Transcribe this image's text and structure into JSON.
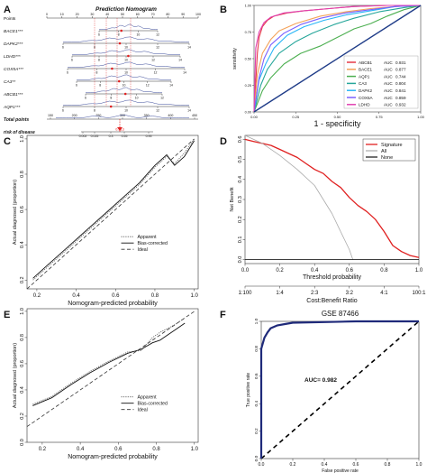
{
  "panels": {
    "A": {
      "letter": "A",
      "title": "Prediction Nomogram",
      "rows": [
        "Points",
        "BACE1***",
        "DAPK2***",
        "LDHD***",
        "COX5A***",
        "CA3**",
        "ABCB1***",
        "AQP1***"
      ],
      "points_ticks": [
        "0",
        "10",
        "20",
        "30",
        "40",
        "50",
        "60",
        "70",
        "80",
        "90",
        "100"
      ],
      "total_points_label": "Total points",
      "total_points_ticks": [
        "150",
        "200",
        "250",
        "300",
        "350",
        "400",
        "450"
      ],
      "risk_label": "risk of disease",
      "risk_ticks": [
        "0.002",
        "0.025",
        "0.3",
        "0.55",
        "0.95"
      ],
      "risk_marker": "0.913",
      "row_ticks": {
        "BACE1": [
          "6",
          "8",
          "10",
          "12"
        ],
        "DAPK2": [
          "6",
          "8",
          "10",
          "12",
          "14"
        ],
        "LDHD": [
          "6",
          "8",
          "10",
          "12",
          "14"
        ],
        "COX5A": [
          "6",
          "8",
          "10",
          "12",
          "14"
        ],
        "CA3": [
          "6",
          "8",
          "10",
          "12",
          "14"
        ],
        "ABCB1": [
          "6",
          "8",
          "10",
          "12"
        ],
        "AQP1": [
          "6",
          "8",
          "10",
          "12",
          "14"
        ]
      }
    },
    "B": {
      "letter": "B",
      "xlabel": "1 - specificity",
      "ylabel": "sensitivity",
      "xticks": [
        "0.00",
        "0.25",
        "0.50",
        "0.75",
        "1.00"
      ],
      "yticks": [
        "0.00",
        "0.25",
        "0.50",
        "0.75",
        "1.00"
      ],
      "legend": [
        {
          "gene": "ABCB1",
          "auc_label": "AUC",
          "auc": "0.931",
          "color": "#e63946"
        },
        {
          "gene": "BACE1",
          "auc_label": "AUC",
          "auc": "0.877",
          "color": "#f4a259"
        },
        {
          "gene": "AQP1",
          "auc_label": "AUC",
          "auc": "0.744",
          "color": "#4caf50"
        },
        {
          "gene": "CA3",
          "auc_label": "AUC",
          "auc": "0.804",
          "color": "#26a69a"
        },
        {
          "gene": "DAPK2",
          "auc_label": "AUC",
          "auc": "0.841",
          "color": "#29b6f6"
        },
        {
          "gene": "COX5A",
          "auc_label": "AUC",
          "auc": "0.859",
          "color": "#7b61ff"
        },
        {
          "gene": "LDHD",
          "auc_label": "AUC",
          "auc": "0.932",
          "color": "#e040b0"
        }
      ]
    },
    "C": {
      "letter": "C",
      "xlabel": "Nomogram-predicted probability",
      "ylabel": "Actual diagnosed (proportion)",
      "xticks": [
        "0.2",
        "0.4",
        "0.6",
        "0.8",
        "1.0"
      ],
      "yticks": [
        "0.2",
        "0.4",
        "0.6",
        "0.8",
        "1.0"
      ],
      "legend": [
        "Apparent",
        "Bias-corrected",
        "Ideal"
      ]
    },
    "D": {
      "letter": "D",
      "xlabel": "Threshold probability",
      "xlabel2": "Cost:Benefit Ratio",
      "ylabel": "Net Benefit",
      "xticks": [
        "0.0",
        "0.2",
        "0.4",
        "0.6",
        "0.8",
        "1.0"
      ],
      "xticks2": [
        "1:100",
        "1:4",
        "2:3",
        "3:2",
        "4:1",
        "100:1"
      ],
      "yticks": [
        "0.0",
        "0.1",
        "0.2",
        "0.3",
        "0.4",
        "0.5",
        "0.6"
      ],
      "legend": [
        {
          "label": "Signature",
          "color": "#e02020"
        },
        {
          "label": "All",
          "color": "#b0b0b0"
        },
        {
          "label": "None",
          "color": "#222222"
        }
      ]
    },
    "E": {
      "letter": "E",
      "xlabel": "Nomogram-predicted probability",
      "ylabel": "Actual diagnosed (proportion)",
      "xticks": [
        "0.2",
        "0.4",
        "0.6",
        "0.8",
        "1.0"
      ],
      "yticks": [
        "0.0",
        "0.2",
        "0.4",
        "0.6",
        "0.8",
        "1.0"
      ],
      "legend": [
        "Apparent",
        "Bias-corrected",
        "Ideal"
      ]
    },
    "F": {
      "letter": "F",
      "title": "GSE 87466",
      "xlabel": "False positive rate",
      "ylabel": "True positive rate",
      "auc_text": "AUC= 0.982",
      "xticks": [
        "0.0",
        "0.2",
        "0.4",
        "0.6",
        "0.8",
        "1.0"
      ],
      "yticks": [
        "0.0",
        "0.2",
        "0.4",
        "0.6",
        "0.8",
        "1.0"
      ]
    }
  },
  "chart_data": [
    {
      "type": "line",
      "panel": "B",
      "xlabel": "1 - specificity",
      "ylabel": "sensitivity",
      "xlim": [
        0,
        1
      ],
      "ylim": [
        0,
        1
      ],
      "series": [
        {
          "name": "ABCB1 AUC 0.931",
          "color": "#e63946",
          "x": [
            0,
            0.02,
            0.03,
            0.05,
            0.08,
            0.12,
            0.2,
            0.3,
            0.45,
            0.6,
            0.8,
            1.0
          ],
          "y": [
            0,
            0.55,
            0.7,
            0.8,
            0.86,
            0.9,
            0.93,
            0.95,
            0.97,
            0.99,
            1.0,
            1.0
          ]
        },
        {
          "name": "BACE1 AUC 0.877",
          "color": "#f4a259",
          "x": [
            0,
            0.02,
            0.05,
            0.1,
            0.15,
            0.25,
            0.4,
            0.55,
            0.7,
            0.85,
            1.0
          ],
          "y": [
            0,
            0.35,
            0.55,
            0.68,
            0.76,
            0.83,
            0.9,
            0.94,
            0.97,
            0.99,
            1.0
          ]
        },
        {
          "name": "AQP1 AUC 0.744",
          "color": "#4caf50",
          "x": [
            0,
            0.05,
            0.1,
            0.18,
            0.28,
            0.4,
            0.5,
            0.6,
            0.7,
            0.8,
            0.9,
            1.0
          ],
          "y": [
            0,
            0.2,
            0.32,
            0.45,
            0.55,
            0.62,
            0.7,
            0.78,
            0.83,
            0.9,
            0.96,
            1.0
          ]
        },
        {
          "name": "CA3 AUC 0.804",
          "color": "#26a69a",
          "x": [
            0,
            0.04,
            0.08,
            0.15,
            0.25,
            0.35,
            0.48,
            0.6,
            0.75,
            0.9,
            1.0
          ],
          "y": [
            0,
            0.25,
            0.4,
            0.55,
            0.66,
            0.74,
            0.82,
            0.88,
            0.94,
            0.98,
            1.0
          ]
        },
        {
          "name": "DAPK2 AUC 0.841",
          "color": "#29b6f6",
          "x": [
            0,
            0.03,
            0.07,
            0.12,
            0.2,
            0.3,
            0.42,
            0.55,
            0.7,
            0.85,
            1.0
          ],
          "y": [
            0,
            0.3,
            0.45,
            0.6,
            0.72,
            0.8,
            0.86,
            0.91,
            0.95,
            0.99,
            1.0
          ]
        },
        {
          "name": "COX5A AUC 0.859",
          "color": "#7b61ff",
          "x": [
            0,
            0.03,
            0.06,
            0.1,
            0.18,
            0.28,
            0.4,
            0.55,
            0.7,
            0.85,
            1.0
          ],
          "y": [
            0,
            0.32,
            0.5,
            0.63,
            0.74,
            0.82,
            0.88,
            0.93,
            0.96,
            0.99,
            1.0
          ]
        },
        {
          "name": "LDHD AUC 0.932",
          "color": "#e040b0",
          "x": [
            0,
            0.01,
            0.03,
            0.06,
            0.1,
            0.18,
            0.3,
            0.45,
            0.6,
            0.8,
            1.0
          ],
          "y": [
            0,
            0.6,
            0.75,
            0.84,
            0.89,
            0.93,
            0.95,
            0.97,
            0.99,
            1.0,
            1.0
          ]
        },
        {
          "name": "reference",
          "color": "#1f3c88",
          "x": [
            0,
            1
          ],
          "y": [
            0,
            1
          ]
        }
      ]
    },
    {
      "type": "line",
      "panel": "C",
      "xlabel": "Nomogram-predicted probability",
      "ylabel": "Actual diagnosed (proportion)",
      "xlim": [
        0.15,
        1.02
      ],
      "ylim": [
        0.15,
        1.02
      ],
      "series": [
        {
          "name": "Apparent",
          "x": [
            0.18,
            0.25,
            0.35,
            0.45,
            0.55,
            0.65,
            0.72,
            0.8,
            0.86,
            0.9,
            0.95,
            1.0
          ],
          "y": [
            0.2,
            0.27,
            0.37,
            0.47,
            0.57,
            0.67,
            0.74,
            0.84,
            0.9,
            0.86,
            0.92,
            1.0
          ]
        },
        {
          "name": "Bias-corrected",
          "x": [
            0.18,
            0.25,
            0.35,
            0.45,
            0.55,
            0.65,
            0.72,
            0.8,
            0.86,
            0.9,
            0.95,
            1.0
          ],
          "y": [
            0.21,
            0.28,
            0.38,
            0.48,
            0.58,
            0.68,
            0.75,
            0.85,
            0.91,
            0.85,
            0.9,
            0.99
          ]
        },
        {
          "name": "Ideal",
          "x": [
            0.15,
            1.0
          ],
          "y": [
            0.15,
            1.0
          ]
        }
      ]
    },
    {
      "type": "line",
      "panel": "D",
      "xlabel": "Threshold probability",
      "ylabel": "Net Benefit",
      "xlim": [
        0,
        1
      ],
      "ylim": [
        -0.02,
        0.62
      ],
      "series": [
        {
          "name": "Signature",
          "x": [
            0,
            0.05,
            0.1,
            0.15,
            0.2,
            0.25,
            0.3,
            0.35,
            0.4,
            0.45,
            0.5,
            0.55,
            0.6,
            0.65,
            0.7,
            0.75,
            0.8,
            0.85,
            0.9,
            0.95,
            1.0
          ],
          "y": [
            0.6,
            0.59,
            0.58,
            0.57,
            0.55,
            0.53,
            0.51,
            0.48,
            0.45,
            0.43,
            0.39,
            0.36,
            0.31,
            0.27,
            0.24,
            0.2,
            0.14,
            0.07,
            0.04,
            0.02,
            0.01
          ]
        },
        {
          "name": "All",
          "x": [
            0,
            0.1,
            0.2,
            0.3,
            0.4,
            0.5,
            0.55,
            0.6,
            0.62
          ],
          "y": [
            0.62,
            0.58,
            0.52,
            0.45,
            0.37,
            0.23,
            0.14,
            0.05,
            0.0
          ]
        },
        {
          "name": "None",
          "x": [
            0,
            1
          ],
          "y": [
            0,
            0
          ]
        }
      ]
    },
    {
      "type": "line",
      "panel": "E",
      "xlabel": "Nomogram-predicted probability",
      "ylabel": "Actual diagnosed (proportion)",
      "xlim": [
        0.12,
        1.02
      ],
      "ylim": [
        0.0,
        1.02
      ],
      "series": [
        {
          "name": "Apparent",
          "x": [
            0.15,
            0.25,
            0.35,
            0.45,
            0.55,
            0.65,
            0.72,
            0.78,
            0.82,
            0.86,
            0.9,
            0.95
          ],
          "y": [
            0.29,
            0.35,
            0.45,
            0.54,
            0.62,
            0.69,
            0.7,
            0.8,
            0.84,
            0.87,
            0.9,
            0.95
          ]
        },
        {
          "name": "Bias-corrected",
          "x": [
            0.15,
            0.25,
            0.35,
            0.45,
            0.55,
            0.65,
            0.72,
            0.78,
            0.82,
            0.86,
            0.9,
            0.95
          ],
          "y": [
            0.28,
            0.34,
            0.44,
            0.53,
            0.61,
            0.68,
            0.71,
            0.76,
            0.78,
            0.82,
            0.86,
            0.91
          ]
        },
        {
          "name": "Ideal",
          "x": [
            0.12,
            1.0
          ],
          "y": [
            0.12,
            1.0
          ]
        }
      ]
    },
    {
      "type": "line",
      "panel": "F",
      "title": "GSE 87466",
      "xlabel": "False positive rate",
      "ylabel": "True positive rate",
      "xlim": [
        0,
        1
      ],
      "ylim": [
        0,
        1
      ],
      "series": [
        {
          "name": "ROC",
          "color": "#1f2a7a",
          "x": [
            0,
            0.0,
            0.02,
            0.04,
            0.06,
            0.1,
            0.15,
            0.2,
            0.4,
            0.6,
            0.8,
            1.0
          ],
          "y": [
            0,
            0.8,
            0.88,
            0.92,
            0.95,
            0.97,
            0.98,
            0.99,
            0.995,
            1.0,
            1.0,
            1.0
          ]
        },
        {
          "name": "reference",
          "x": [
            0,
            1
          ],
          "y": [
            0,
            1
          ]
        }
      ]
    }
  ]
}
